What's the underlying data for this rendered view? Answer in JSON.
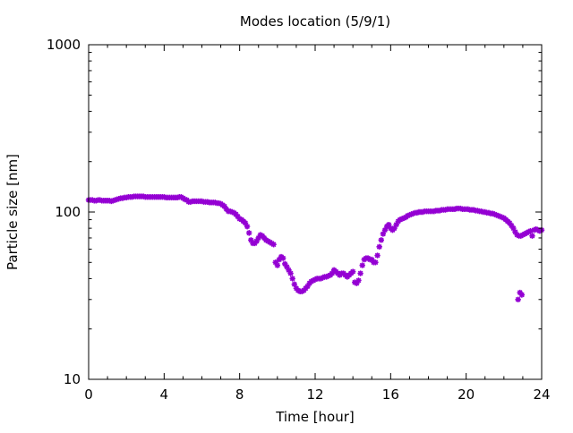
{
  "chart_data": {
    "type": "scatter",
    "title": "Modes location (5/9/1)",
    "xlabel": "Time [hour]",
    "ylabel": "Particle size [nm]",
    "xlim": [
      0,
      24
    ],
    "ylim": [
      10,
      1000
    ],
    "yscale": "log",
    "x_ticks": [
      0,
      4,
      8,
      12,
      16,
      20,
      24
    ],
    "x_tick_labels": [
      "0",
      "4",
      "8",
      "12",
      "16",
      "20",
      "24"
    ],
    "y_ticks": [
      10,
      100,
      1000
    ],
    "y_tick_labels": [
      "10",
      "100",
      "1000"
    ],
    "grid": false,
    "legend": "none",
    "marker_color": "#9400d3",
    "series": [
      {
        "points": [
          [
            0.0,
            118
          ],
          [
            0.1,
            118
          ],
          [
            0.2,
            118
          ],
          [
            0.3,
            117
          ],
          [
            0.4,
            117
          ],
          [
            0.5,
            118
          ],
          [
            0.6,
            118
          ],
          [
            0.7,
            117
          ],
          [
            0.8,
            117
          ],
          [
            0.9,
            117
          ],
          [
            1.0,
            117
          ],
          [
            1.1,
            117
          ],
          [
            1.2,
            116
          ],
          [
            1.3,
            117
          ],
          [
            1.4,
            118
          ],
          [
            1.5,
            119
          ],
          [
            1.6,
            120
          ],
          [
            1.7,
            121
          ],
          [
            1.8,
            121
          ],
          [
            1.9,
            122
          ],
          [
            2.0,
            122
          ],
          [
            2.1,
            123
          ],
          [
            2.2,
            123
          ],
          [
            2.3,
            123
          ],
          [
            2.4,
            124
          ],
          [
            2.5,
            124
          ],
          [
            2.6,
            124
          ],
          [
            2.7,
            124
          ],
          [
            2.8,
            124
          ],
          [
            2.9,
            124
          ],
          [
            3.0,
            123
          ],
          [
            3.1,
            123
          ],
          [
            3.2,
            123
          ],
          [
            3.3,
            123
          ],
          [
            3.4,
            123
          ],
          [
            3.5,
            123
          ],
          [
            3.6,
            123
          ],
          [
            3.7,
            123
          ],
          [
            3.8,
            123
          ],
          [
            3.9,
            123
          ],
          [
            4.0,
            123
          ],
          [
            4.1,
            122
          ],
          [
            4.2,
            122
          ],
          [
            4.3,
            122
          ],
          [
            4.4,
            122
          ],
          [
            4.5,
            122
          ],
          [
            4.6,
            122
          ],
          [
            4.7,
            122
          ],
          [
            4.8,
            123
          ],
          [
            4.9,
            123
          ],
          [
            5.0,
            121
          ],
          [
            5.1,
            119
          ],
          [
            5.2,
            118
          ],
          [
            5.3,
            115
          ],
          [
            5.4,
            115
          ],
          [
            5.5,
            116
          ],
          [
            5.6,
            116
          ],
          [
            5.7,
            116
          ],
          [
            5.8,
            116
          ],
          [
            5.9,
            116
          ],
          [
            6.0,
            116
          ],
          [
            6.1,
            115
          ],
          [
            6.2,
            115
          ],
          [
            6.3,
            115
          ],
          [
            6.4,
            114
          ],
          [
            6.5,
            114
          ],
          [
            6.6,
            114
          ],
          [
            6.7,
            114
          ],
          [
            6.8,
            113
          ],
          [
            6.9,
            113
          ],
          [
            7.0,
            112
          ],
          [
            7.1,
            110
          ],
          [
            7.2,
            108
          ],
          [
            7.3,
            104
          ],
          [
            7.4,
            101
          ],
          [
            7.5,
            101
          ],
          [
            7.6,
            100
          ],
          [
            7.7,
            99
          ],
          [
            7.8,
            97
          ],
          [
            7.9,
            94
          ],
          [
            8.0,
            91
          ],
          [
            8.1,
            90
          ],
          [
            8.2,
            88
          ],
          [
            8.3,
            86
          ],
          [
            8.4,
            82
          ],
          [
            8.5,
            75
          ],
          [
            8.6,
            68
          ],
          [
            8.7,
            65
          ],
          [
            8.8,
            65
          ],
          [
            8.9,
            67
          ],
          [
            9.0,
            70
          ],
          [
            9.1,
            73
          ],
          [
            9.2,
            72
          ],
          [
            9.3,
            70
          ],
          [
            9.4,
            68
          ],
          [
            9.5,
            67
          ],
          [
            9.6,
            66
          ],
          [
            9.7,
            65
          ],
          [
            9.8,
            64
          ],
          [
            9.9,
            50
          ],
          [
            10.0,
            48
          ],
          [
            10.1,
            52
          ],
          [
            10.2,
            54
          ],
          [
            10.3,
            53
          ],
          [
            10.4,
            49
          ],
          [
            10.5,
            47
          ],
          [
            10.6,
            45
          ],
          [
            10.7,
            43
          ],
          [
            10.8,
            40
          ],
          [
            10.9,
            37
          ],
          [
            11.0,
            35
          ],
          [
            11.1,
            34
          ],
          [
            11.2,
            33.5
          ],
          [
            11.3,
            33.5
          ],
          [
            11.4,
            34
          ],
          [
            11.5,
            35
          ],
          [
            11.6,
            36
          ],
          [
            11.7,
            37.5
          ],
          [
            11.8,
            38.5
          ],
          [
            11.9,
            39
          ],
          [
            12.0,
            39.5
          ],
          [
            12.1,
            40
          ],
          [
            12.2,
            40
          ],
          [
            12.3,
            40
          ],
          [
            12.4,
            40.5
          ],
          [
            12.5,
            41
          ],
          [
            12.6,
            41
          ],
          [
            12.7,
            41.5
          ],
          [
            12.8,
            42
          ],
          [
            12.9,
            43
          ],
          [
            13.0,
            45
          ],
          [
            13.1,
            44
          ],
          [
            13.2,
            43
          ],
          [
            13.3,
            42
          ],
          [
            13.4,
            43
          ],
          [
            13.5,
            43
          ],
          [
            13.6,
            42
          ],
          [
            13.7,
            41
          ],
          [
            13.8,
            42
          ],
          [
            13.9,
            43
          ],
          [
            14.0,
            44
          ],
          [
            14.1,
            38
          ],
          [
            14.2,
            37.5
          ],
          [
            14.3,
            39
          ],
          [
            14.4,
            43
          ],
          [
            14.5,
            48
          ],
          [
            14.6,
            52
          ],
          [
            14.7,
            53
          ],
          [
            14.8,
            53
          ],
          [
            14.9,
            52
          ],
          [
            15.0,
            52
          ],
          [
            15.1,
            50
          ],
          [
            15.2,
            50
          ],
          [
            15.3,
            55
          ],
          [
            15.4,
            62
          ],
          [
            15.5,
            68
          ],
          [
            15.6,
            74
          ],
          [
            15.7,
            78
          ],
          [
            15.8,
            82
          ],
          [
            15.9,
            84
          ],
          [
            16.0,
            80
          ],
          [
            16.1,
            78
          ],
          [
            16.2,
            80
          ],
          [
            16.3,
            84
          ],
          [
            16.4,
            88
          ],
          [
            16.5,
            90
          ],
          [
            16.6,
            91
          ],
          [
            16.7,
            92
          ],
          [
            16.8,
            93
          ],
          [
            16.9,
            95
          ],
          [
            17.0,
            96
          ],
          [
            17.1,
            97
          ],
          [
            17.2,
            98
          ],
          [
            17.3,
            99
          ],
          [
            17.4,
            99
          ],
          [
            17.5,
            100
          ],
          [
            17.6,
            100
          ],
          [
            17.7,
            100
          ],
          [
            17.8,
            101
          ],
          [
            17.9,
            101
          ],
          [
            18.0,
            101
          ],
          [
            18.1,
            101
          ],
          [
            18.2,
            101
          ],
          [
            18.3,
            101
          ],
          [
            18.4,
            102
          ],
          [
            18.5,
            102
          ],
          [
            18.6,
            102
          ],
          [
            18.7,
            103
          ],
          [
            18.8,
            103
          ],
          [
            18.9,
            103
          ],
          [
            19.0,
            104
          ],
          [
            19.1,
            104
          ],
          [
            19.2,
            104
          ],
          [
            19.3,
            104
          ],
          [
            19.4,
            104
          ],
          [
            19.5,
            105
          ],
          [
            19.6,
            105
          ],
          [
            19.7,
            105
          ],
          [
            19.8,
            104
          ],
          [
            19.9,
            104
          ],
          [
            20.0,
            104
          ],
          [
            20.1,
            104
          ],
          [
            20.2,
            103
          ],
          [
            20.3,
            103
          ],
          [
            20.4,
            103
          ],
          [
            20.5,
            102
          ],
          [
            20.6,
            102
          ],
          [
            20.7,
            101
          ],
          [
            20.8,
            101
          ],
          [
            20.9,
            100
          ],
          [
            21.0,
            100
          ],
          [
            21.1,
            99
          ],
          [
            21.2,
            99
          ],
          [
            21.3,
            98
          ],
          [
            21.4,
            98
          ],
          [
            21.5,
            97
          ],
          [
            21.6,
            96
          ],
          [
            21.7,
            95
          ],
          [
            21.8,
            94
          ],
          [
            21.9,
            93
          ],
          [
            22.0,
            92
          ],
          [
            22.1,
            90
          ],
          [
            22.2,
            88
          ],
          [
            22.3,
            86
          ],
          [
            22.4,
            83
          ],
          [
            22.5,
            80
          ],
          [
            22.6,
            76
          ],
          [
            22.7,
            73
          ],
          [
            22.75,
            30
          ],
          [
            22.8,
            72
          ],
          [
            22.85,
            33
          ],
          [
            22.9,
            72
          ],
          [
            22.95,
            32
          ],
          [
            23.0,
            73
          ],
          [
            23.1,
            74
          ],
          [
            23.2,
            75
          ],
          [
            23.3,
            76
          ],
          [
            23.4,
            77
          ],
          [
            23.5,
            72
          ],
          [
            23.6,
            78
          ],
          [
            23.7,
            79
          ],
          [
            23.8,
            78
          ],
          [
            23.9,
            77
          ],
          [
            24.0,
            78
          ]
        ]
      }
    ]
  }
}
